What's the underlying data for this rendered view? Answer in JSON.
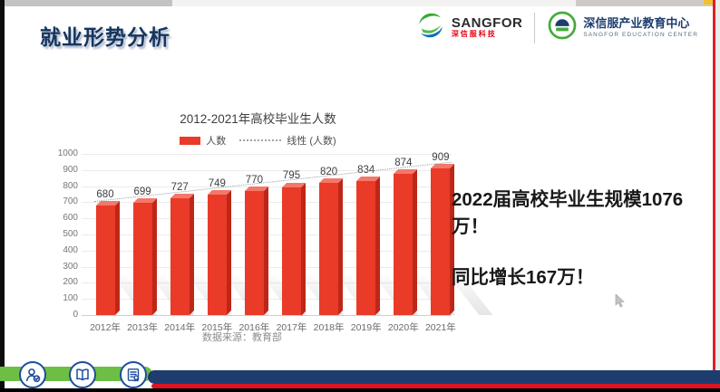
{
  "page": {
    "title": "就业形势分析"
  },
  "header": {
    "sangfor_logo": {
      "name": "SANGFOR",
      "subtitle": "深信服科技"
    },
    "edu_logo": {
      "name": "深信服产业教育中心",
      "subtitle": "SANGFOR EDUCATION CENTER"
    }
  },
  "chart_data": {
    "type": "bar",
    "title": "2012-2021年高校毕业生人数",
    "categories": [
      "2012年",
      "2013年",
      "2014年",
      "2015年",
      "2016年",
      "2017年",
      "2018年",
      "2019年",
      "2020年",
      "2021年"
    ],
    "values": [
      680,
      699,
      727,
      749,
      770,
      795,
      820,
      834,
      874,
      909
    ],
    "series_label": "人数",
    "trendline_label": "线性 (人数)",
    "ylim": [
      0,
      1000
    ],
    "ytick_step": 100,
    "grid": true,
    "legend_position": "top",
    "bar_color": "#e93b28",
    "source": "数据来源：教育部"
  },
  "highlight": {
    "line1": "2022届高校毕业生规模1076万！",
    "line2": "同比增长167万！"
  },
  "footer": {
    "icons": [
      "user-check-icon",
      "open-book-icon",
      "certificate-icon"
    ]
  }
}
